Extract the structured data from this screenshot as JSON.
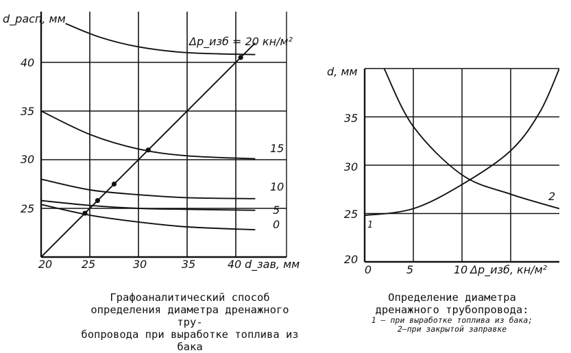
{
  "chart_data": [
    {
      "type": "line",
      "xlabel": "d_зав, мм",
      "ylabel": "d_расп, мм",
      "xlim": [
        20,
        42
      ],
      "ylim": [
        20,
        44
      ],
      "x_ticks": [
        "20",
        "25",
        "30",
        "35",
        "40"
      ],
      "y_ticks": [
        "25",
        "30",
        "35",
        "40"
      ],
      "grid": true,
      "series": [
        {
          "name": "Δp_изб = 20 кн/м²",
          "x": [
            22.5,
            26,
            30,
            35,
            42
          ],
          "y": [
            44,
            42.6,
            41.6,
            41.0,
            40.8
          ]
        },
        {
          "name": "15",
          "x": [
            20,
            25,
            30,
            35,
            42
          ],
          "y": [
            35,
            32.6,
            31.1,
            30.4,
            30.1
          ]
        },
        {
          "name": "10",
          "x": [
            20,
            25,
            30,
            35,
            42
          ],
          "y": [
            28,
            26.9,
            26.4,
            26.1,
            26.0
          ]
        },
        {
          "name": "5",
          "x": [
            20,
            25,
            30,
            35,
            42
          ],
          "y": [
            25.8,
            25.3,
            25.0,
            24.9,
            24.8
          ]
        },
        {
          "name": "0",
          "x": [
            20,
            25,
            30,
            35,
            42
          ],
          "y": [
            25.4,
            24.3,
            23.6,
            23.1,
            22.8
          ]
        },
        {
          "name": "",
          "x": [
            20,
            42
          ],
          "y": [
            20,
            42
          ]
        }
      ],
      "intersections": [
        {
          "x": 24.5,
          "y": 24.5
        },
        {
          "x": 25.8,
          "y": 25.8
        },
        {
          "x": 27.5,
          "y": 27.5
        },
        {
          "x": 31.0,
          "y": 31.0
        },
        {
          "x": 40.5,
          "y": 40.5
        }
      ],
      "caption": [
        "Графоаналитический  способ",
        "определения диаметра дренажного тру-",
        "бопровода  при  выработке  топлива  из",
        "бака"
      ]
    },
    {
      "type": "line",
      "xlabel": "Δp_изб, кн/м²",
      "ylabel": "d, мм",
      "xlim": [
        0,
        20
      ],
      "ylim": [
        20,
        40
      ],
      "x_ticks": [
        "0",
        "5",
        "10"
      ],
      "y_ticks": [
        "20",
        "25",
        "30",
        "35"
      ],
      "grid": true,
      "series": [
        {
          "name": "1",
          "x": [
            0,
            5,
            10,
            15,
            18,
            20
          ],
          "y": [
            24.8,
            25.5,
            28.0,
            31.5,
            35.5,
            40
          ]
        },
        {
          "name": "2",
          "x": [
            2,
            5,
            10,
            15,
            20
          ],
          "y": [
            40,
            34,
            29,
            27,
            25.5
          ]
        }
      ],
      "caption": [
        "Определение  диаметра",
        "дренажного  трубопровода:"
      ],
      "legend": [
        "1 — при  выработке  топлива  из  бака;",
        "2—при закрытой заправке"
      ]
    }
  ]
}
